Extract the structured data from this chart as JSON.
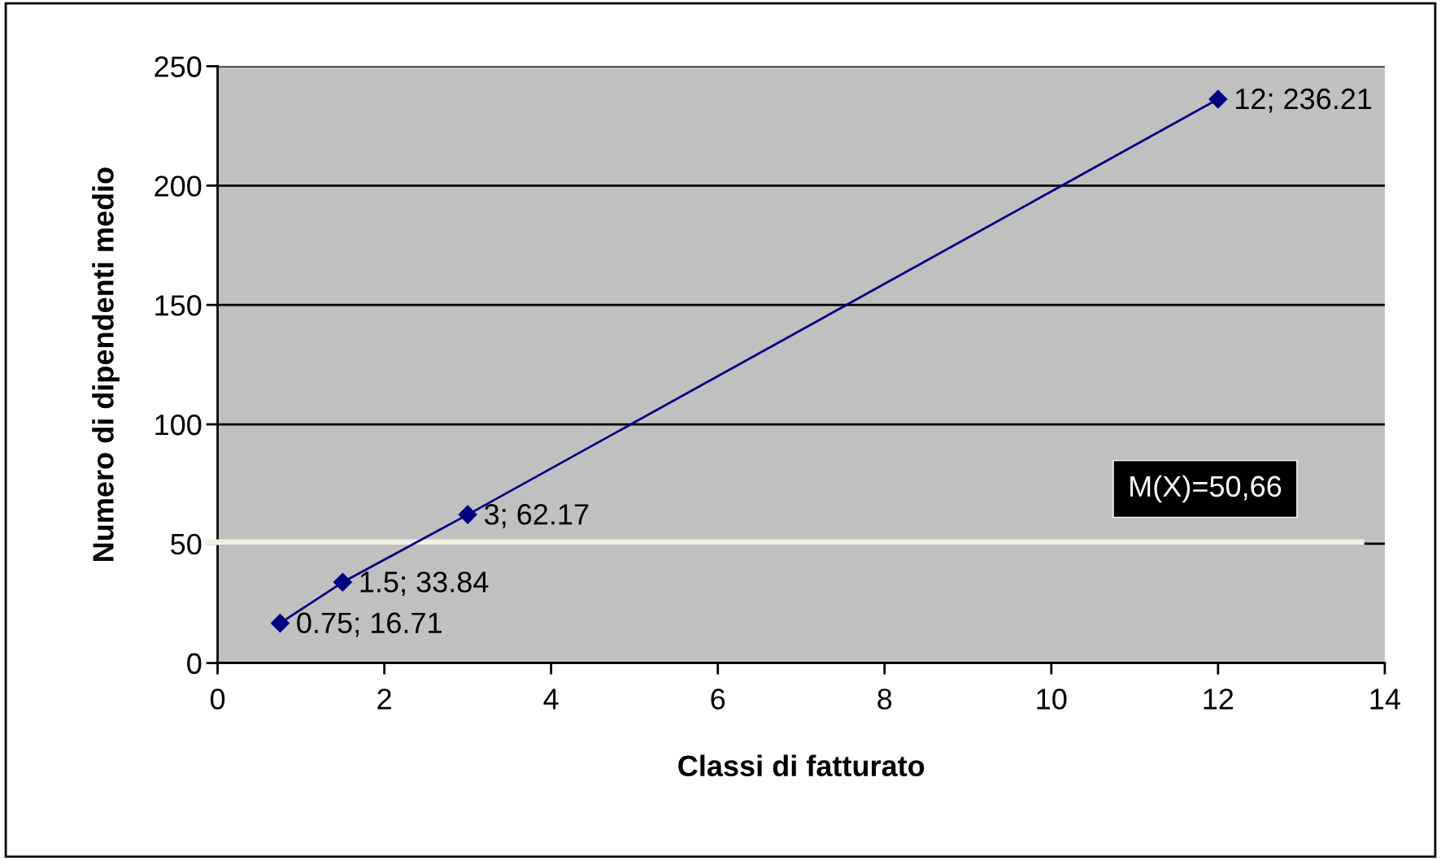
{
  "chart_data": {
    "type": "line",
    "xlabel": "Classi di fatturato",
    "ylabel": "Numero di dipendenti medio",
    "x": [
      0.75,
      1.5,
      3,
      12
    ],
    "series": [
      {
        "color": "#000080",
        "values": [
          16.71,
          33.84,
          62.17,
          236.21
        ],
        "value_labels": [
          "0.75; 16.71",
          "1.5; 33.84",
          "3; 62.17",
          "12; 236.21"
        ]
      }
    ],
    "marker": "diamond",
    "line_style": "solid",
    "xlim": [
      0,
      14
    ],
    "xticks": [
      0,
      2,
      4,
      6,
      8,
      10,
      12,
      14
    ],
    "ylim": [
      0,
      250
    ],
    "yticks": [
      0,
      50,
      100,
      150,
      200,
      250
    ],
    "grid": "y",
    "ref_lines": [
      {
        "axis": "y",
        "value": 50.66,
        "label": "M(X)=50,66",
        "color": "#f5f0e1"
      }
    ]
  }
}
